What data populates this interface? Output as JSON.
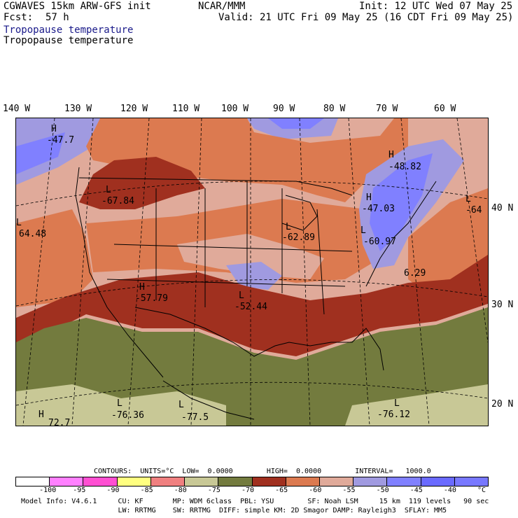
{
  "header": {
    "model": "CGWAVES 15km ARW-GFS init",
    "org": "NCAR/MMM",
    "init": "Init: 12 UTC Wed 07 May 25",
    "fcst_label": "Fcst:",
    "fcst_value": "57 h",
    "valid": "Valid: 21 UTC Fri 09 May 25 (16 CDT Fri 09 May 25)",
    "field_title_1": "Tropopause temperature",
    "field_title_2": "Tropopause temperature"
  },
  "map": {
    "longitude_labels": [
      "140 W",
      "130 W",
      "120 W",
      "110 W",
      "100 W",
      "90 W",
      "80 W",
      "70 W",
      "60 W"
    ],
    "latitude_labels": [
      "40 N",
      "30 N",
      "20 N"
    ],
    "extrema": [
      {
        "type": "H",
        "value": "-47.7"
      },
      {
        "type": "L",
        "value": "-67.84"
      },
      {
        "type": "L",
        "value": "64.48"
      },
      {
        "type": "H",
        "value": "-57.79"
      },
      {
        "type": "L",
        "value": "-52.44"
      },
      {
        "type": "L",
        "value": "-62.89"
      },
      {
        "type": "H",
        "value": "-47.03"
      },
      {
        "type": "L",
        "value": "-60.97"
      },
      {
        "type": "H",
        "value": "-48.82"
      },
      {
        "type": "L",
        "value": "-64"
      },
      {
        "type": "",
        "value": "6.29"
      },
      {
        "type": "L",
        "value": "-76.36"
      },
      {
        "type": "L",
        "value": "-77.5"
      },
      {
        "type": "L",
        "value": "-76.12"
      },
      {
        "type": "H",
        "value": "72.7"
      }
    ]
  },
  "contours": {
    "header": "CONTOURS:  UNITS=°C  LOW=  0.0000        HIGH=  0.0000        INTERVAL=   1000.0"
  },
  "colorbar": {
    "colors": [
      "#ffffff",
      "#ff80ff",
      "#ff4fd2",
      "#ffff80",
      "#f08080",
      "#c8c896",
      "#737b3e",
      "#a0301f",
      "#dc7a50",
      "#e0aa9a",
      "#a09ae0",
      "#8080ff",
      "#6a6aff",
      "#7878ff"
    ],
    "labels": [
      "-100",
      "-95",
      "-90",
      "-85",
      "-80",
      "-75",
      "-70",
      "-65",
      "-60",
      "-55",
      "-50",
      "-45",
      "-40",
      "°C"
    ]
  },
  "footer": {
    "line1": "Model Info: V4.6.1     CU: KF       MP: WDM 6class  PBL: YSU        SF: Noah LSM     15 km  119 levels   90 sec",
    "line2": "                       LW: RRTMG    SW: RRTMG  DIFF: simple KM: 2D Smagor DAMP: Rayleigh3  SFLAY: MM5"
  }
}
